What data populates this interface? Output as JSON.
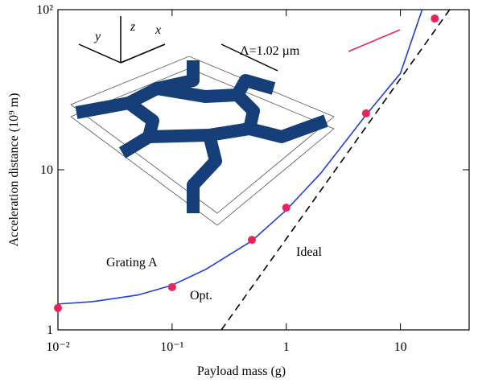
{
  "chart_data": {
    "type": "line",
    "xlabel": "Payload mass (g)",
    "ylabel": "Acceleration distance (10⁹ m)",
    "log_x": true,
    "log_y": true,
    "xlim": [
      0.01,
      40
    ],
    "ylim": [
      1,
      100
    ],
    "xticks": [
      {
        "value": 0.01,
        "label": "10⁻²"
      },
      {
        "value": 0.1,
        "label": "10⁻¹"
      },
      1,
      10
    ],
    "yticks": [
      1,
      10,
      {
        "value": 100,
        "label": "10²"
      }
    ],
    "series": [
      {
        "name": "Grating A",
        "color": "#1f3fdc",
        "style": "solid",
        "x": [
          0.01,
          0.02,
          0.05,
          0.1,
          0.2,
          0.5,
          1,
          2,
          5,
          10,
          15.5
        ],
        "values": [
          1.45,
          1.5,
          1.65,
          1.9,
          2.4,
          3.6,
          5.6,
          9.5,
          22,
          40,
          100
        ]
      },
      {
        "name": "Ideal",
        "color": "#000000",
        "style": "dashed",
        "x": [
          0.27,
          27
        ],
        "values": [
          1,
          100
        ]
      },
      {
        "name": "Opt.",
        "color": "#e8245a",
        "style": "markers",
        "x": [
          0.01,
          0.1,
          0.5,
          1,
          5,
          20
        ],
        "values": [
          1.37,
          1.85,
          3.65,
          5.8,
          22.5,
          88
        ]
      }
    ],
    "inset_labels": [
      "y",
      "z",
      "x",
      "Λ=1.02 µm"
    ]
  }
}
